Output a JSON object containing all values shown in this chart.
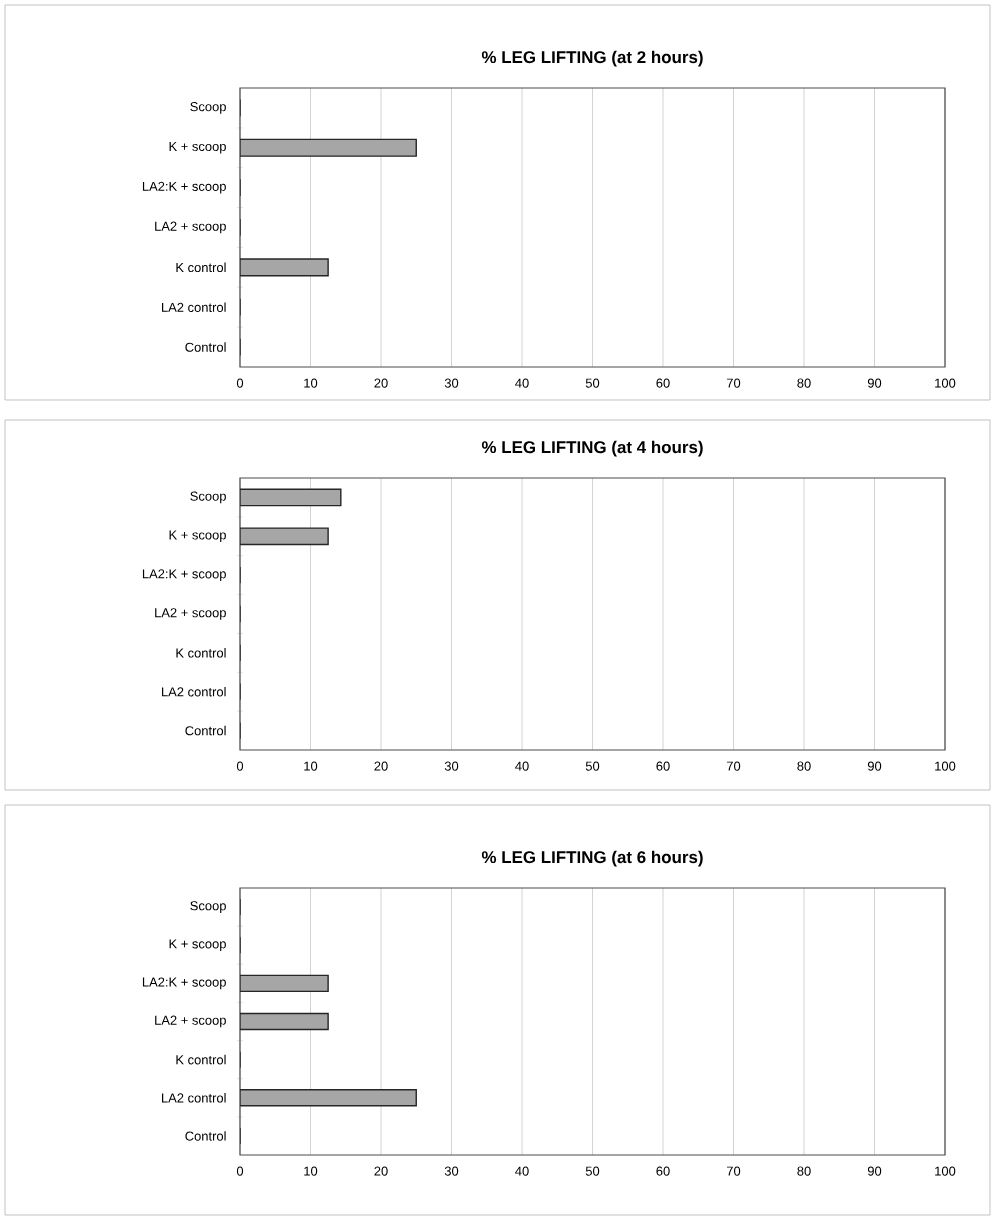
{
  "chart_data": [
    {
      "type": "bar",
      "orientation": "horizontal",
      "title": "% LEG LIFTING (at 2 hours)",
      "categories": [
        "Scoop",
        "K + scoop",
        "LA2:K + scoop",
        "LA2 + scoop",
        "K control",
        "LA2 control",
        "Control"
      ],
      "values": [
        0,
        25,
        0,
        0,
        12.5,
        0,
        0
      ],
      "color": "#a6a6a6",
      "xlim": [
        0,
        100
      ],
      "xticks": [
        0,
        10,
        20,
        30,
        40,
        50,
        60,
        70,
        80,
        90,
        100
      ],
      "grid": "x"
    },
    {
      "type": "bar",
      "orientation": "horizontal",
      "title": "% LEG LIFTING (at 4 hours)",
      "categories": [
        "Scoop",
        "K + scoop",
        "LA2:K + scoop",
        "LA2 + scoop",
        "K control",
        "LA2 control",
        "Control"
      ],
      "values": [
        14.3,
        12.5,
        0,
        0,
        0,
        0,
        0
      ],
      "color": "#a6a6a6",
      "xlim": [
        0,
        100
      ],
      "xticks": [
        0,
        10,
        20,
        30,
        40,
        50,
        60,
        70,
        80,
        90,
        100
      ],
      "grid": "x"
    },
    {
      "type": "bar",
      "orientation": "horizontal",
      "title": "% LEG LIFTING (at 6 hours)",
      "categories": [
        "Scoop",
        "K + scoop",
        "LA2:K + scoop",
        "LA2 + scoop",
        "K control",
        "LA2 control",
        "Control"
      ],
      "values": [
        0,
        0,
        12.5,
        12.5,
        0,
        25,
        0
      ],
      "color": "#a6a6a6",
      "xlim": [
        0,
        100
      ],
      "xticks": [
        0,
        10,
        20,
        30,
        40,
        50,
        60,
        70,
        80,
        90,
        100
      ],
      "grid": "x"
    }
  ]
}
